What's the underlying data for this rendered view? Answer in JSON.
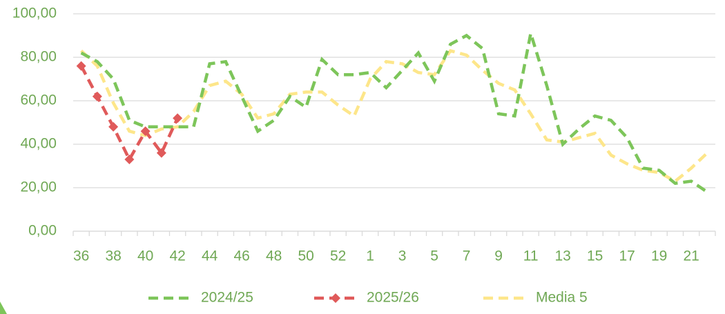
{
  "chart_data": {
    "type": "line",
    "categories": [
      "36",
      null,
      "38",
      null,
      "40",
      null,
      "42",
      null,
      "44",
      null,
      "46",
      null,
      "48",
      null,
      "50",
      null,
      "52",
      null,
      "1",
      null,
      "3",
      null,
      "5",
      null,
      "7",
      null,
      "9",
      null,
      "11",
      null,
      "13",
      null,
      "15",
      null,
      "17",
      null,
      "19",
      null,
      "21",
      null
    ],
    "series": [
      {
        "name": "2024/25",
        "color": "#7dc55a",
        "values": [
          82,
          78,
          70,
          51,
          48,
          48,
          48,
          48,
          77,
          78,
          62,
          46,
          51,
          62,
          57,
          79,
          72,
          72,
          73,
          66,
          74,
          82,
          69,
          86,
          90,
          84,
          54,
          53,
          91,
          67,
          40,
          47,
          53,
          51,
          43,
          29,
          28,
          22,
          23,
          18
        ]
      },
      {
        "name": "2025/26",
        "color": "#e05a5a",
        "marker": "diamond",
        "values": [
          76,
          62,
          48,
          33,
          46,
          36,
          52,
          null,
          null,
          null,
          null,
          null,
          null,
          null,
          null,
          null,
          null,
          null,
          null,
          null,
          null,
          null,
          null,
          null,
          null,
          null,
          null,
          null,
          null,
          null,
          null,
          null,
          null,
          null,
          null,
          null,
          null,
          null,
          null,
          null
        ]
      },
      {
        "name": "Media 5",
        "color": "#fde68a",
        "values": [
          83,
          76,
          59,
          46,
          44,
          47,
          48,
          55,
          67,
          69,
          63,
          52,
          54,
          63,
          64,
          64,
          58,
          53,
          70,
          78,
          77,
          73,
          72,
          83,
          81,
          74,
          68,
          65,
          54,
          42,
          41,
          43,
          45,
          35,
          31,
          28,
          27,
          23,
          29,
          36
        ]
      }
    ],
    "ylim": [
      0,
      100
    ],
    "yticks": [
      {
        "value": 0,
        "label": "0,00"
      },
      {
        "value": 20,
        "label": "20,00"
      },
      {
        "value": 40,
        "label": "40,00"
      },
      {
        "value": 60,
        "label": "60,00"
      },
      {
        "value": 80,
        "label": "80,00"
      },
      {
        "value": 100,
        "label": "100,00"
      }
    ],
    "grid": true,
    "legend": "bottom"
  }
}
